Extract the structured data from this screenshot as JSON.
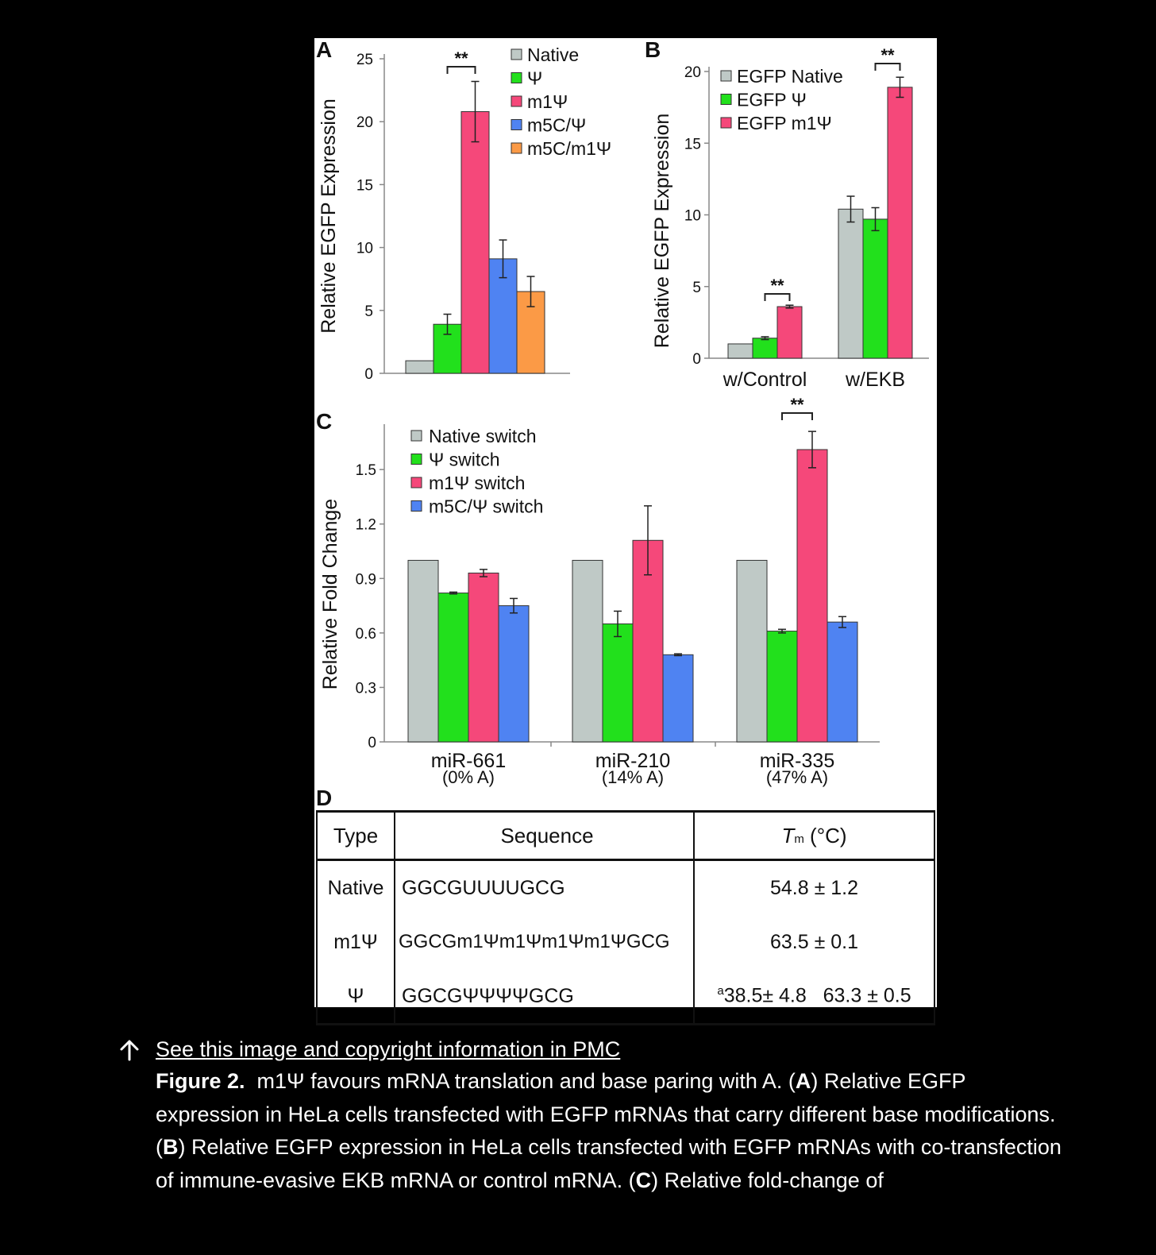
{
  "panel_letters": {
    "a": "A",
    "b": "B",
    "c": "C",
    "d": "D"
  },
  "chart_data": [
    {
      "panel": "A",
      "type": "bar",
      "ylabel": "Relative EGFP Expression",
      "ylim": [
        0,
        25
      ],
      "yticks": [
        0,
        5,
        10,
        15,
        20,
        25
      ],
      "series": [
        {
          "name": "Native",
          "color": "#bfc9c6",
          "value": 1.0,
          "err": null
        },
        {
          "name": "Ψ",
          "color": "#22e01c",
          "value": 3.9,
          "err": 0.8
        },
        {
          "name": "m1Ψ",
          "color": "#f5487a",
          "value": 20.8,
          "err": 2.4
        },
        {
          "name": "m5C/Ψ",
          "color": "#4f83f2",
          "value": 9.1,
          "err": 1.5
        },
        {
          "name": "m5C/m1Ψ",
          "color": "#fb9a46",
          "value": 6.5,
          "err": 1.2
        }
      ],
      "significance": [
        {
          "between": [
            1,
            2
          ],
          "label": "**"
        }
      ]
    },
    {
      "panel": "B",
      "type": "bar",
      "ylabel": "Relative EGFP Expression",
      "ylim": [
        0,
        20
      ],
      "yticks": [
        0,
        5,
        10,
        15,
        20
      ],
      "categories": [
        "w/Control",
        "w/EKB"
      ],
      "series": [
        {
          "name": "EGFP Native",
          "color": "#bfc9c6",
          "values": [
            1.0,
            10.4
          ],
          "err": [
            null,
            0.9
          ]
        },
        {
          "name": "EGFP Ψ",
          "color": "#22e01c",
          "values": [
            1.4,
            9.7
          ],
          "err": [
            0.1,
            0.8
          ]
        },
        {
          "name": "EGFP m1Ψ",
          "color": "#f5487a",
          "values": [
            3.6,
            18.9
          ],
          "err": [
            0.1,
            0.7
          ]
        }
      ],
      "significance": [
        {
          "category": 0,
          "between": [
            1,
            2
          ],
          "label": "**"
        },
        {
          "category": 1,
          "between": [
            1,
            2
          ],
          "label": "**"
        }
      ]
    },
    {
      "panel": "C",
      "type": "bar",
      "ylabel": "Relative Fold Change",
      "ylim": [
        0,
        1.75
      ],
      "yticks": [
        "0",
        "0.3",
        "0.6",
        "0.9",
        "1.2",
        "1.5"
      ],
      "categories": [
        "miR-661",
        "miR-210",
        "miR-335"
      ],
      "subcategories": [
        "(0% A)",
        "(14% A)",
        "(47% A)"
      ],
      "series": [
        {
          "name": "Native switch",
          "color": "#bfc9c6",
          "values": [
            1.0,
            1.0,
            1.0
          ],
          "err": [
            null,
            null,
            null
          ]
        },
        {
          "name": "Ψ switch",
          "color": "#22e01c",
          "values": [
            0.82,
            0.65,
            0.61
          ],
          "err": [
            0.005,
            0.07,
            0.01
          ]
        },
        {
          "name": "m1Ψ switch",
          "color": "#f5487a",
          "values": [
            0.93,
            1.11,
            1.61
          ],
          "err": [
            0.02,
            0.19,
            0.1
          ]
        },
        {
          "name": "m5C/Ψ switch",
          "color": "#4f83f2",
          "values": [
            0.75,
            0.48,
            0.66
          ],
          "err": [
            0.04,
            0.005,
            0.03
          ]
        }
      ],
      "significance": [
        {
          "category": 2,
          "between": [
            1,
            2
          ],
          "label": "**"
        }
      ]
    },
    {
      "panel": "D",
      "type": "table",
      "headers": {
        "type": "Type",
        "sequence": "Sequence",
        "tm_symbol": "T",
        "tm_sub": "m",
        "tm_unit": " (°C)"
      },
      "rows": [
        {
          "type": "Native",
          "sequence": "GGCGUUUUGCG",
          "sup": "",
          "tm": "54.8 ± 1.2"
        },
        {
          "type": "m1Ψ",
          "sequence": "GGCGm1Ψm1Ψm1Ψm1ΨGCG",
          "sup": "",
          "tm": "63.5 ± 0.1"
        },
        {
          "type": "Ψ",
          "sequence": "GGCGΨΨΨΨGCG",
          "sup": "a",
          "tm": "38.5± 4.8   63.3 ± 0.5"
        }
      ]
    }
  ],
  "caption": {
    "link_icon": "arrow-up-icon",
    "link_text": "See this image and copyright information in PMC",
    "figure_label": "Figure 2.",
    "parts": [
      {
        "t": "  m1Ψ favours mRNA translation and base paring with A. (",
        "b": false
      },
      {
        "t": "A",
        "b": true
      },
      {
        "t": ") Relative EGFP expression in HeLa cells transfected with EGFP mRNAs that carry different base modifications. (",
        "b": false
      },
      {
        "t": "B",
        "b": true
      },
      {
        "t": ") Relative EGFP expression in HeLa cells transfected with EGFP mRNAs with co-transfection of immune-evasive EKB mRNA or control mRNA. (",
        "b": false
      },
      {
        "t": "C",
        "b": true
      },
      {
        "t": ") Relative fold-change of",
        "b": false
      }
    ]
  }
}
